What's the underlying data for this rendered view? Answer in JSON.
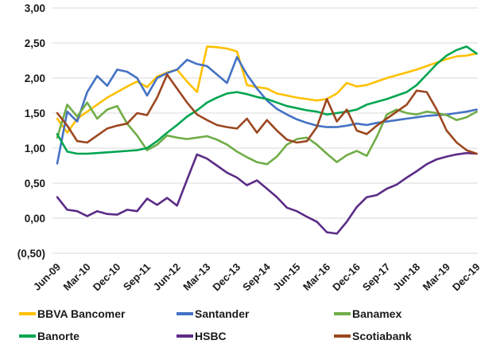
{
  "chart_data": {
    "type": "line",
    "title": "",
    "grid": "horizontal",
    "legend_position": "bottom",
    "x_axis": {
      "labels_shown": [
        "Jun-09",
        "Mar-10",
        "Dec-10",
        "Sep-11",
        "Jun-12",
        "Mar-13",
        "Dec-13",
        "Sep-14",
        "Jun-15",
        "Mar-16",
        "Dec-16",
        "Sep-17",
        "Jun-18",
        "Mar-19",
        "Dec-19"
      ],
      "label_every_n_points": 3,
      "points_total": 43,
      "frequency": "quarterly"
    },
    "y_axis": {
      "min": -0.5,
      "max": 3.0,
      "step": 0.5,
      "tick_labels": [
        "3,00",
        "2,50",
        "2,00",
        "1,50",
        "1,00",
        "0,50",
        "0,00",
        "(0,50)"
      ],
      "decimal_separator": ","
    },
    "series": [
      {
        "name": "BBVA Bancomer",
        "color": "#FFC000",
        "values": [
          1.42,
          1.22,
          1.42,
          1.52,
          1.62,
          1.72,
          1.8,
          1.88,
          1.95,
          1.87,
          2.02,
          2.08,
          2.12,
          1.95,
          1.8,
          2.45,
          2.44,
          2.42,
          2.38,
          1.9,
          1.87,
          1.85,
          1.78,
          1.75,
          1.72,
          1.7,
          1.68,
          1.7,
          1.78,
          1.93,
          1.88,
          1.9,
          1.95,
          2.0,
          2.04,
          2.08,
          2.12,
          2.17,
          2.22,
          2.27,
          2.31,
          2.32,
          2.35
        ]
      },
      {
        "name": "Santander",
        "color": "#4472C4",
        "values": [
          0.78,
          1.52,
          1.38,
          1.8,
          2.03,
          1.89,
          2.12,
          2.09,
          2.0,
          1.75,
          2.0,
          2.07,
          2.12,
          2.26,
          2.2,
          2.17,
          2.05,
          1.93,
          2.3,
          2.05,
          1.85,
          1.68,
          1.56,
          1.48,
          1.41,
          1.36,
          1.32,
          1.3,
          1.3,
          1.32,
          1.35,
          1.33,
          1.36,
          1.38,
          1.4,
          1.42,
          1.44,
          1.46,
          1.47,
          1.48,
          1.5,
          1.52,
          1.55
        ]
      },
      {
        "name": "Banamex",
        "color": "#70AD47",
        "values": [
          1.15,
          1.62,
          1.45,
          1.65,
          1.42,
          1.55,
          1.6,
          1.35,
          1.18,
          0.97,
          1.05,
          1.18,
          1.15,
          1.13,
          1.15,
          1.17,
          1.12,
          1.05,
          0.95,
          0.87,
          0.8,
          0.77,
          0.88,
          1.05,
          1.13,
          1.15,
          1.05,
          0.92,
          0.8,
          0.9,
          0.96,
          0.89,
          1.16,
          1.48,
          1.55,
          1.5,
          1.48,
          1.52,
          1.5,
          1.47,
          1.4,
          1.44,
          1.52
        ]
      },
      {
        "name": "Banorte",
        "color": "#00A550",
        "values": [
          1.2,
          0.95,
          0.92,
          0.92,
          0.93,
          0.94,
          0.95,
          0.96,
          0.97,
          1.0,
          1.1,
          1.22,
          1.33,
          1.45,
          1.54,
          1.65,
          1.72,
          1.78,
          1.8,
          1.77,
          1.73,
          1.7,
          1.65,
          1.6,
          1.57,
          1.54,
          1.52,
          1.48,
          1.5,
          1.52,
          1.55,
          1.62,
          1.66,
          1.7,
          1.75,
          1.8,
          1.9,
          2.05,
          2.2,
          2.32,
          2.4,
          2.45,
          2.35
        ]
      },
      {
        "name": "HSBC",
        "color": "#5B2C86",
        "values": [
          0.3,
          0.12,
          0.1,
          0.03,
          0.1,
          0.06,
          0.05,
          0.12,
          0.1,
          0.28,
          0.19,
          0.29,
          0.18,
          0.55,
          0.91,
          0.85,
          0.75,
          0.65,
          0.58,
          0.47,
          0.54,
          0.42,
          0.3,
          0.15,
          0.1,
          0.02,
          -0.05,
          -0.2,
          -0.22,
          -0.05,
          0.16,
          0.3,
          0.33,
          0.42,
          0.48,
          0.58,
          0.67,
          0.77,
          0.84,
          0.88,
          0.91,
          0.93,
          0.92
        ]
      },
      {
        "name": "Scotiabank",
        "color": "#9C4720",
        "values": [
          1.5,
          1.32,
          1.1,
          1.08,
          1.18,
          1.28,
          1.32,
          1.35,
          1.5,
          1.47,
          1.72,
          2.05,
          1.85,
          1.65,
          1.48,
          1.4,
          1.33,
          1.3,
          1.28,
          1.42,
          1.22,
          1.4,
          1.25,
          1.12,
          1.08,
          1.1,
          1.3,
          1.7,
          1.38,
          1.55,
          1.25,
          1.2,
          1.32,
          1.42,
          1.52,
          1.62,
          1.82,
          1.8,
          1.55,
          1.25,
          1.08,
          0.97,
          0.92
        ]
      }
    ]
  },
  "legend": {
    "items": [
      "BBVA Bancomer",
      "Santander",
      "Banamex",
      "Banorte",
      "HSBC",
      "Scotiabank"
    ]
  },
  "style": {
    "gridline_color": "#D9D9D9",
    "axis_text_color": "#1a1a1a",
    "background": "#ffffff",
    "line_width": 2.6
  }
}
